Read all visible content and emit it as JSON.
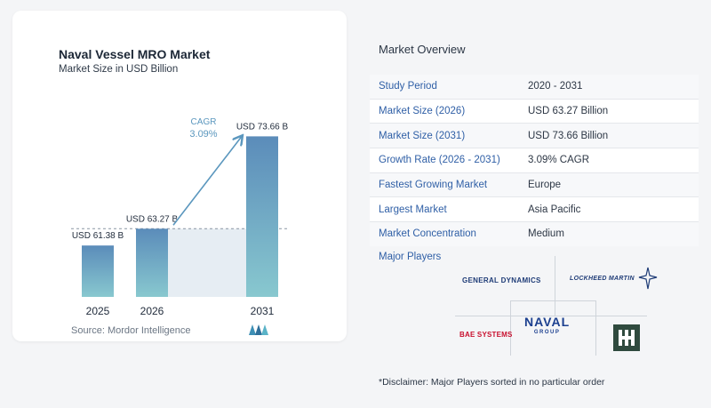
{
  "chart_data": {
    "type": "bar",
    "title": "Naval Vessel MRO Market",
    "subtitle": "Market Size in USD Billion",
    "categories": [
      "2025",
      "2026",
      "2031"
    ],
    "values": [
      61.38,
      63.27,
      73.66
    ],
    "value_labels": [
      "USD 61.38 B",
      "USD 63.27 B",
      "USD 73.66 B"
    ],
    "cagr_label": "CAGR",
    "cagr_value": "3.09%",
    "colors": {
      "bar_top": "#5b8cba",
      "bar_bottom": "#88c8cf",
      "shade": "#e6edf3",
      "arrow": "#5b97be"
    }
  },
  "source": "Source:  Mordor Intelligence",
  "overview": {
    "title": "Market Overview",
    "rows": [
      {
        "label": "Study Period",
        "value": "2020 - 2031"
      },
      {
        "label": "Market Size (2026)",
        "value": "USD 63.27 Billion"
      },
      {
        "label": "Market Size (2031)",
        "value": "USD 73.66 Billion"
      },
      {
        "label": "Growth Rate (2026 - 2031)",
        "value": "3.09% CAGR"
      },
      {
        "label": "Fastest Growing Market",
        "value": "Europe"
      },
      {
        "label": "Largest Market",
        "value": "Asia Pacific"
      },
      {
        "label": "Market Concentration",
        "value": "Medium"
      }
    ]
  },
  "players": {
    "label": "Major Players",
    "logos": [
      "GENERAL DYNAMICS",
      "LOCKHEED MARTIN",
      "BAE SYSTEMS",
      "NAVAL",
      "GROUP",
      "HII"
    ]
  },
  "disclaimer": "*Disclaimer: Major Players sorted in no particular order"
}
